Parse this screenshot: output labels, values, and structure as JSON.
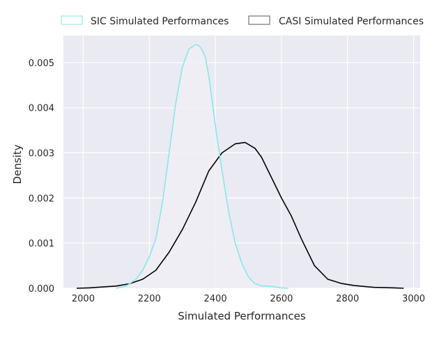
{
  "chart_data": {
    "type": "line",
    "subtype": "kde-density",
    "title": "",
    "xlabel": "Simulated Performances",
    "ylabel": "Density",
    "xlim": [
      1940,
      3020
    ],
    "ylim": [
      0,
      0.0056
    ],
    "xticks": [
      2000,
      2200,
      2400,
      2600,
      2800,
      3000
    ],
    "xtick_labels": [
      "2000",
      "2200",
      "2400",
      "2600",
      "2800",
      "3000"
    ],
    "yticks": [
      0,
      0.001,
      0.002,
      0.003,
      0.004,
      0.005
    ],
    "ytick_labels": [
      "0.000",
      "0.001",
      "0.002",
      "0.003",
      "0.004",
      "0.005"
    ],
    "grid": true,
    "legend_position": "top, outside plot",
    "background_color": "#eaeaf2",
    "grid_color": "#ffffff",
    "legend": [
      {
        "label": "SIC Simulated Performances",
        "color": "#8ae6ee"
      },
      {
        "label": "CASI Simulated Performances",
        "color": "#000000"
      }
    ],
    "series": [
      {
        "name": "SIC Simulated Performances",
        "color": "#8ae6ee",
        "fill": "#f0eef5",
        "x": [
          2100,
          2130,
          2160,
          2180,
          2200,
          2220,
          2240,
          2260,
          2280,
          2300,
          2320,
          2340,
          2350,
          2360,
          2370,
          2380,
          2400,
          2420,
          2440,
          2460,
          2480,
          2500,
          2520,
          2540,
          2560,
          2580,
          2600,
          2620
        ],
        "y": [
          0.0,
          5e-05,
          0.0002,
          0.0004,
          0.0007,
          0.0011,
          0.0019,
          0.003,
          0.0041,
          0.0049,
          0.0053,
          0.0054,
          0.00538,
          0.00528,
          0.0051,
          0.0047,
          0.0036,
          0.0026,
          0.0017,
          0.001,
          0.00055,
          0.00025,
          0.0001,
          5e-05,
          5e-05,
          3e-05,
          1e-05,
          0.0
        ]
      },
      {
        "name": "CASI Simulated Performances",
        "color": "#000000",
        "x": [
          1980,
          2020,
          2060,
          2100,
          2140,
          2180,
          2220,
          2260,
          2300,
          2340,
          2380,
          2420,
          2460,
          2490,
          2520,
          2540,
          2560,
          2580,
          2600,
          2630,
          2660,
          2700,
          2740,
          2780,
          2820,
          2880,
          2940,
          2970
        ],
        "y": [
          0.0,
          1e-05,
          3e-05,
          5e-05,
          0.0001,
          0.0002,
          0.0004,
          0.0008,
          0.0013,
          0.0019,
          0.0026,
          0.003,
          0.0032,
          0.00323,
          0.0031,
          0.0029,
          0.0026,
          0.0023,
          0.002,
          0.0016,
          0.0011,
          0.0005,
          0.0002,
          0.00011,
          6e-05,
          2e-05,
          1e-05,
          0.0
        ]
      }
    ]
  }
}
